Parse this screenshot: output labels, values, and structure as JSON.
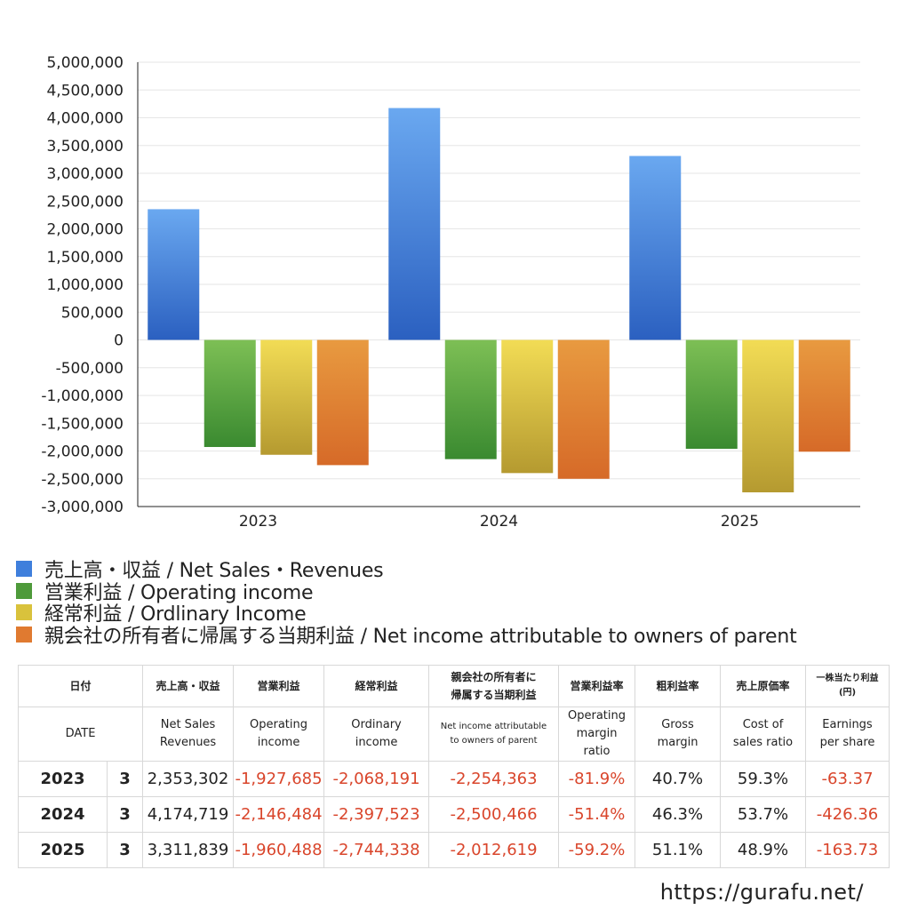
{
  "chart_data": {
    "type": "bar",
    "categories": [
      "2023",
      "2024",
      "2025"
    ],
    "series": [
      {
        "name": "売上高・収益 / Net Sales・Revenues",
        "values": [
          2353302,
          4174719,
          3311839
        ],
        "color_top": "#6aa8f0",
        "color_bottom": "#2b60c0"
      },
      {
        "name": "営業利益 / Operating income",
        "values": [
          -1927685,
          -2146484,
          -1960488
        ],
        "color_top": "#7dbf55",
        "color_bottom": "#3a8a30"
      },
      {
        "name": "経常利益 / Ordlinary Income",
        "values": [
          -2068191,
          -2397523,
          -2744338
        ],
        "color_top": "#f2dc55",
        "color_bottom": "#b59a30"
      },
      {
        "name": "親会社の所有者に帰属する当期利益 / Net income attributable to owners of parent",
        "values": [
          -2254363,
          -2500466,
          -2012619
        ],
        "color_top": "#e89a40",
        "color_bottom": "#d66a28"
      }
    ],
    "ylim": [
      -3000000,
      5000000
    ],
    "yticks": [
      5000000,
      4500000,
      4000000,
      3500000,
      3000000,
      2500000,
      2000000,
      1500000,
      1000000,
      500000,
      0,
      -500000,
      -1000000,
      -1500000,
      -2000000,
      -2500000,
      -3000000
    ],
    "ytick_labels": [
      "5,000,000",
      "4,500,000",
      "4,000,000",
      "3,500,000",
      "3,000,000",
      "2,500,000",
      "2,000,000",
      "1,500,000",
      "1,000,000",
      "500,000",
      "0",
      "-500,000",
      "-1,000,000",
      "-1,500,000",
      "-2,000,000",
      "-2,500,000",
      "-3,000,000"
    ],
    "grid": true,
    "legend_position": "bottom-left"
  },
  "legend": [
    {
      "label": "売上高・収益 / Net Sales・Revenues",
      "color": "#3f7fdc"
    },
    {
      "label": "営業利益 / Operating income",
      "color": "#4e9a3a"
    },
    {
      "label": "経常利益 / Ordlinary Income",
      "color": "#d9c23c"
    },
    {
      "label": "親会社の所有者に帰属する当期利益 / Net income attributable to owners of parent",
      "color": "#e07a30"
    }
  ],
  "table": {
    "headers_jp": {
      "date": "日付",
      "sales": "売上高・収益",
      "operating": "営業利益",
      "ordinary": "経常利益",
      "net_line1": "親会社の所有者に",
      "net_line2": "帰属する当期利益",
      "op_margin": "営業利益率",
      "gross_margin": "粗利益率",
      "cost_ratio": "売上原価率",
      "eps_line1": "一株当たり利益",
      "eps_line2": "(円)"
    },
    "headers_en": {
      "date": "DATE",
      "sales_line1": "Net Sales",
      "sales_line2": "Revenues",
      "operating_line1": "Operating",
      "operating_line2": "income",
      "ordinary_line1": "Ordinary",
      "ordinary_line2": "income",
      "net_line1": "Net income attributable",
      "net_line2": "to owners of parent",
      "op_margin_line1": "Operating",
      "op_margin_line2": "margin",
      "op_margin_line3": "ratio",
      "gross_line1": "Gross",
      "gross_line2": "margin",
      "cost_line1": "Cost of",
      "cost_line2": "sales ratio",
      "eps_line1": "Earnings",
      "eps_line2": "per share"
    },
    "rows": [
      {
        "year": "2023",
        "month": "3",
        "sales": "2,353,302",
        "operating": "-1,927,685",
        "ordinary": "-2,068,191",
        "net": "-2,254,363",
        "op_margin": "-81.9%",
        "gross_margin": "40.7%",
        "cost_ratio": "59.3%",
        "eps": "-63.37"
      },
      {
        "year": "2024",
        "month": "3",
        "sales": "4,174,719",
        "operating": "-2,146,484",
        "ordinary": "-2,397,523",
        "net": "-2,500,466",
        "op_margin": "-51.4%",
        "gross_margin": "46.3%",
        "cost_ratio": "53.7%",
        "eps": "-426.36"
      },
      {
        "year": "2025",
        "month": "3",
        "sales": "3,311,839",
        "operating": "-1,960,488",
        "ordinary": "-2,744,338",
        "net": "-2,012,619",
        "op_margin": "-59.2%",
        "gross_margin": "51.1%",
        "cost_ratio": "48.9%",
        "eps": "-163.73"
      }
    ]
  },
  "footer": {
    "url": "https://gurafu.net/"
  }
}
